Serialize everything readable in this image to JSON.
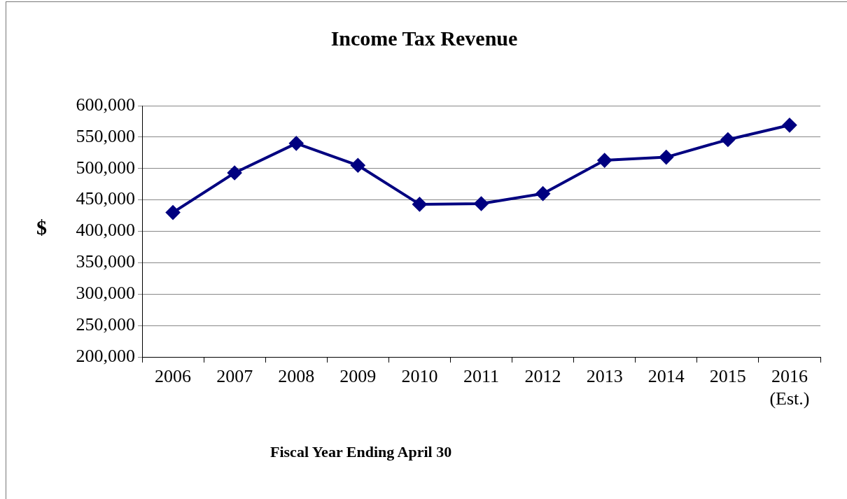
{
  "chart_data": {
    "type": "line",
    "title": "Income Tax Revenue",
    "xlabel": "Fiscal Year Ending April 30",
    "ylabel": "$",
    "categories": [
      "2006",
      "2007",
      "2008",
      "2009",
      "2010",
      "2011",
      "2012",
      "2013",
      "2014",
      "2015",
      "2016\n(Est.)"
    ],
    "series": [
      {
        "color": "#000080",
        "values": [
          430000,
          493000,
          540000,
          505000,
          443000,
          444000,
          460000,
          513000,
          518000,
          546000,
          569000
        ]
      }
    ],
    "ylim": [
      200000,
      600000
    ],
    "yticks": [
      {
        "value": 200000,
        "label": "200,000"
      },
      {
        "value": 250000,
        "label": "250,000"
      },
      {
        "value": 300000,
        "label": "300,000"
      },
      {
        "value": 350000,
        "label": "350,000"
      },
      {
        "value": 400000,
        "label": "400,000"
      },
      {
        "value": 450000,
        "label": "450,000"
      },
      {
        "value": 500000,
        "label": "500,000"
      },
      {
        "value": 550000,
        "label": "550,000"
      },
      {
        "value": 600000,
        "label": "600,000"
      }
    ],
    "grid": "y",
    "legend": false,
    "marker": "diamond",
    "line_style": "solid"
  }
}
